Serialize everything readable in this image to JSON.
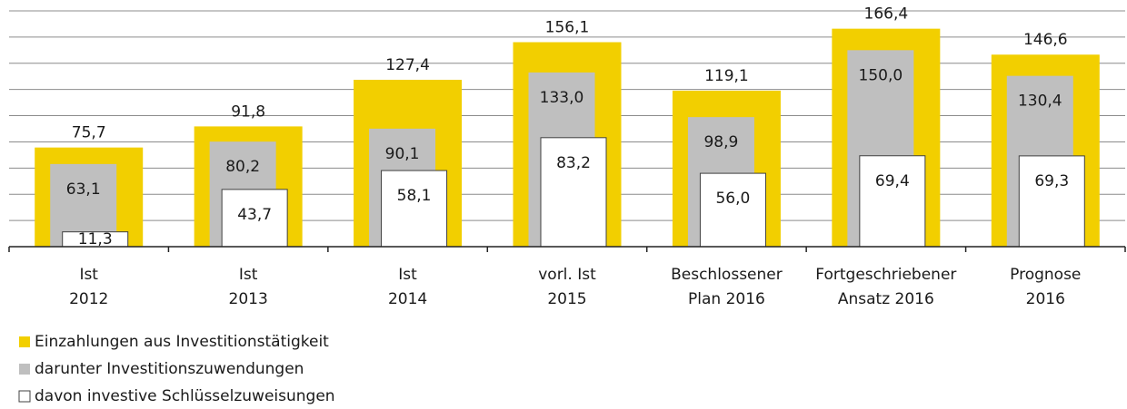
{
  "chart_data": {
    "type": "bar",
    "categories": [
      [
        "Ist",
        "2012"
      ],
      [
        "Ist",
        "2013"
      ],
      [
        "Ist",
        "2014"
      ],
      [
        "vorl. Ist",
        "2015"
      ],
      [
        "Beschlossener",
        "Plan 2016"
      ],
      [
        "Fortgeschriebener",
        "Ansatz 2016"
      ],
      [
        "Prognose",
        "2016"
      ]
    ],
    "series": [
      {
        "name": "Einzahlungen aus Investitionstätigkeit",
        "color": "#f2cf00",
        "values": [
          75.7,
          91.8,
          127.4,
          156.1,
          119.1,
          166.4,
          146.6
        ],
        "value_labels": [
          "75,7",
          "91,8",
          "127,4",
          "156,1",
          "119,1",
          "166,4",
          "146,6"
        ]
      },
      {
        "name": "darunter Investitionszuwendungen",
        "color": "#bfbfbf",
        "values": [
          63.1,
          80.2,
          90.1,
          133.0,
          98.9,
          150.0,
          130.4
        ],
        "value_labels": [
          "63,1",
          "80,2",
          "90,1",
          "133,0",
          "98,9",
          "150,0",
          "130,4"
        ]
      },
      {
        "name": "davon investive Schlüsselzuweisungen",
        "color": "#ffffff",
        "values": [
          11.3,
          43.7,
          58.1,
          83.2,
          56.0,
          69.4,
          69.3
        ],
        "value_labels": [
          "11,3",
          "43,7",
          "58,1",
          "83,2",
          "56,0",
          "69,4",
          "69,3"
        ]
      }
    ],
    "ylim": [
      0,
      180
    ],
    "yticks": [
      0,
      20,
      40,
      60,
      80,
      100,
      120,
      140,
      160,
      180
    ],
    "grid": true
  }
}
